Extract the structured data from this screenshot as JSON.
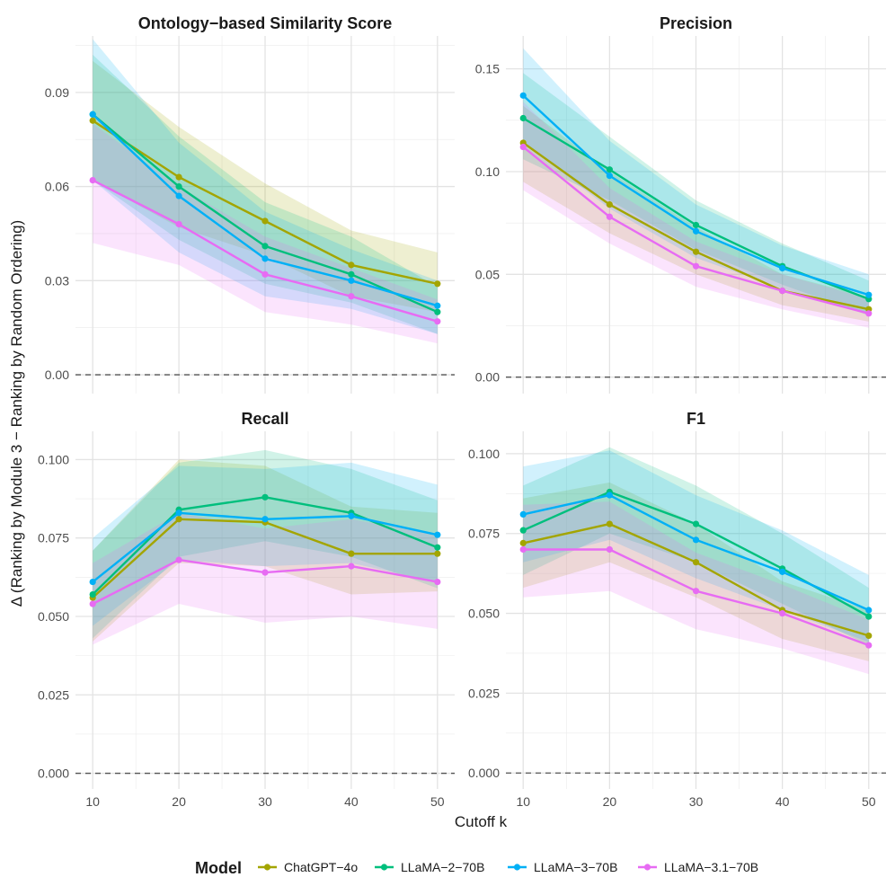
{
  "chart_data": {
    "type": "line",
    "xlabel": "Cutoff k",
    "ylabel": "Δ (Ranking by Module 3 − Ranking by Random Ordering)",
    "x": [
      10,
      20,
      30,
      40,
      50
    ],
    "legend": {
      "title": "Model",
      "position": "bottom",
      "entries": [
        {
          "name": "ChatGPT−4o",
          "color": "#A3A500"
        },
        {
          "name": "LLaMA−2−70B",
          "color": "#00BF7D"
        },
        {
          "name": "LLaMA−3−70B",
          "color": "#00B0F6"
        },
        {
          "name": "LLaMA−3.1−70B",
          "color": "#E76BF3"
        }
      ]
    },
    "panels": [
      {
        "title": "Ontology−based Similarity Score",
        "ylim": [
          -0.006,
          0.108
        ],
        "yticks": [
          0.0,
          0.03,
          0.06,
          0.09
        ],
        "ytick_labels": [
          "0.00",
          "0.03",
          "0.06",
          "0.09"
        ],
        "series": [
          {
            "name": "ChatGPT−4o",
            "values": [
              0.081,
              0.063,
              0.049,
              0.035,
              0.029
            ],
            "lower": [
              0.062,
              0.047,
              0.038,
              0.025,
              0.02
            ],
            "upper": [
              0.1,
              0.079,
              0.061,
              0.046,
              0.039
            ]
          },
          {
            "name": "LLaMA−2−70B",
            "values": [
              0.083,
              0.06,
              0.041,
              0.032,
              0.02
            ],
            "lower": [
              0.062,
              0.043,
              0.029,
              0.023,
              0.013
            ],
            "upper": [
              0.102,
              0.076,
              0.055,
              0.044,
              0.028
            ]
          },
          {
            "name": "LLaMA−3−70B",
            "values": [
              0.083,
              0.057,
              0.037,
              0.03,
              0.022
            ],
            "lower": [
              0.062,
              0.039,
              0.025,
              0.021,
              0.013
            ],
            "upper": [
              0.107,
              0.074,
              0.052,
              0.04,
              0.03
            ]
          },
          {
            "name": "LLaMA−3.1−70B",
            "values": [
              0.062,
              0.048,
              0.032,
              0.025,
              0.017
            ],
            "lower": [
              0.042,
              0.035,
              0.02,
              0.016,
              0.01
            ],
            "upper": [
              0.08,
              0.06,
              0.044,
              0.034,
              0.024
            ]
          }
        ]
      },
      {
        "title": "Precision",
        "ylim": [
          -0.008,
          0.166
        ],
        "yticks": [
          0.0,
          0.05,
          0.1,
          0.15
        ],
        "ytick_labels": [
          "0.00",
          "0.05",
          "0.10",
          "0.15"
        ],
        "series": [
          {
            "name": "ChatGPT−4o",
            "values": [
              0.114,
              0.084,
              0.061,
              0.042,
              0.033
            ],
            "lower": [
              0.095,
              0.07,
              0.05,
              0.035,
              0.027
            ],
            "upper": [
              0.132,
              0.1,
              0.073,
              0.05,
              0.039
            ]
          },
          {
            "name": "LLaMA−2−70B",
            "values": [
              0.126,
              0.101,
              0.074,
              0.054,
              0.038
            ],
            "lower": [
              0.106,
              0.086,
              0.062,
              0.045,
              0.03
            ],
            "upper": [
              0.148,
              0.117,
              0.086,
              0.065,
              0.047
            ]
          },
          {
            "name": "LLaMA−3−70B",
            "values": [
              0.137,
              0.098,
              0.071,
              0.053,
              0.04
            ],
            "lower": [
              0.114,
              0.082,
              0.058,
              0.043,
              0.031
            ],
            "upper": [
              0.16,
              0.115,
              0.084,
              0.064,
              0.05
            ]
          },
          {
            "name": "LLaMA−3.1−70B",
            "values": [
              0.112,
              0.078,
              0.054,
              0.042,
              0.031
            ],
            "lower": [
              0.091,
              0.065,
              0.044,
              0.033,
              0.024
            ],
            "upper": [
              0.134,
              0.092,
              0.066,
              0.05,
              0.038
            ]
          }
        ]
      },
      {
        "title": "Recall",
        "ylim": [
          -0.005,
          0.109
        ],
        "yticks": [
          0.0,
          0.025,
          0.05,
          0.075,
          0.1
        ],
        "ytick_labels": [
          "0.000",
          "0.025",
          "0.050",
          "0.075",
          "0.100"
        ],
        "series": [
          {
            "name": "ChatGPT−4o",
            "values": [
              0.056,
              0.081,
              0.08,
              0.07,
              0.07
            ],
            "lower": [
              0.042,
              0.067,
              0.066,
              0.057,
              0.058
            ],
            "upper": [
              0.071,
              0.1,
              0.098,
              0.085,
              0.083
            ]
          },
          {
            "name": "LLaMA−2−70B",
            "values": [
              0.057,
              0.084,
              0.088,
              0.083,
              0.072
            ],
            "lower": [
              0.043,
              0.069,
              0.074,
              0.069,
              0.059
            ],
            "upper": [
              0.071,
              0.099,
              0.103,
              0.097,
              0.087
            ]
          },
          {
            "name": "LLaMA−3−70B",
            "values": [
              0.061,
              0.083,
              0.081,
              0.082,
              0.076
            ],
            "lower": [
              0.047,
              0.068,
              0.066,
              0.067,
              0.061
            ],
            "upper": [
              0.075,
              0.098,
              0.097,
              0.099,
              0.092
            ]
          },
          {
            "name": "LLaMA−3.1−70B",
            "values": [
              0.054,
              0.068,
              0.064,
              0.066,
              0.061
            ],
            "lower": [
              0.041,
              0.054,
              0.048,
              0.05,
              0.046
            ],
            "upper": [
              0.067,
              0.083,
              0.078,
              0.081,
              0.076
            ]
          }
        ]
      },
      {
        "title": "F1",
        "ylim": [
          -0.005,
          0.107
        ],
        "yticks": [
          0.0,
          0.025,
          0.05,
          0.075,
          0.1
        ],
        "ytick_labels": [
          "0.000",
          "0.025",
          "0.050",
          "0.075",
          "0.100"
        ],
        "series": [
          {
            "name": "ChatGPT−4o",
            "values": [
              0.072,
              0.078,
              0.066,
              0.051,
              0.043
            ],
            "lower": [
              0.058,
              0.066,
              0.055,
              0.042,
              0.035
            ],
            "upper": [
              0.086,
              0.091,
              0.078,
              0.06,
              0.051
            ]
          },
          {
            "name": "LLaMA−2−70B",
            "values": [
              0.076,
              0.088,
              0.078,
              0.064,
              0.049
            ],
            "lower": [
              0.062,
              0.075,
              0.066,
              0.053,
              0.04
            ],
            "upper": [
              0.09,
              0.102,
              0.09,
              0.075,
              0.058
            ]
          },
          {
            "name": "LLaMA−3−70B",
            "values": [
              0.081,
              0.087,
              0.073,
              0.063,
              0.051
            ],
            "lower": [
              0.066,
              0.073,
              0.061,
              0.051,
              0.041
            ],
            "upper": [
              0.096,
              0.101,
              0.087,
              0.076,
              0.062
            ]
          },
          {
            "name": "LLaMA−3.1−70B",
            "values": [
              0.07,
              0.07,
              0.057,
              0.05,
              0.04
            ],
            "lower": [
              0.055,
              0.057,
              0.045,
              0.039,
              0.031
            ],
            "upper": [
              0.084,
              0.085,
              0.069,
              0.059,
              0.048
            ]
          }
        ]
      }
    ]
  }
}
